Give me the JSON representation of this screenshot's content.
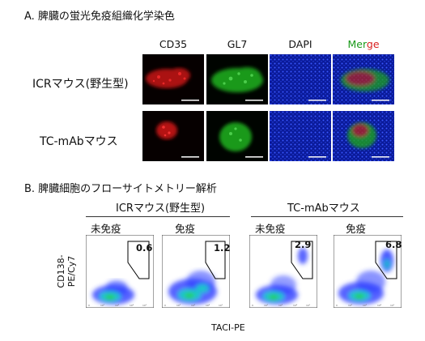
{
  "section_a": {
    "title": "A. 脾臓の蛍光免疫組織化学染色",
    "columns": [
      "CD35",
      "GL7",
      "DAPI"
    ],
    "merge_label": {
      "green": "Mer",
      "red": "ge"
    },
    "rows": [
      {
        "label": "ICRマウス(野生型)"
      },
      {
        "label": "TC-mAbマウス"
      }
    ]
  },
  "section_b": {
    "title": "B. 脾臓細胞のフローサイトメトリー解析",
    "groups": [
      {
        "label": "ICRマウス(野生型)",
        "subs": [
          "未免疫",
          "免疫"
        ]
      },
      {
        "label": "TC-mAbマウス",
        "subs": [
          "未免疫",
          "免疫"
        ]
      }
    ],
    "gate_percentages": [
      "0.6",
      "1.2",
      "2.9",
      "6.8"
    ],
    "y_axis_label": [
      "CD138-",
      "PE/Cy7"
    ],
    "x_axis_label": "TACI-PE"
  },
  "colors": {
    "cd35": "#c81414",
    "gl7": "#1fa21f",
    "dapi": "#1733c8",
    "flow_low": "#2a3cff",
    "flow_mid": "#1bc8c8",
    "flow_high": "#26d026"
  }
}
